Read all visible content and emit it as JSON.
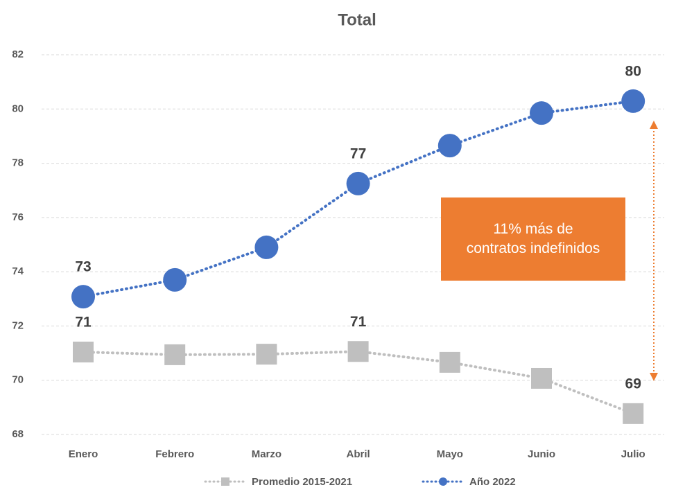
{
  "chart_data": {
    "type": "line",
    "title": "Total",
    "categories": [
      "Enero",
      "Febrero",
      "Marzo",
      "Abril",
      "Mayo",
      "Junio",
      "Julio"
    ],
    "series": [
      {
        "name": "Promedio 2015-2021",
        "color": "#BFBFBF",
        "marker": "square",
        "values": [
          71.04,
          70.94,
          70.96,
          71.06,
          70.66,
          70.07,
          68.77
        ],
        "value_labels": [
          "71",
          null,
          null,
          "71",
          null,
          null,
          "69"
        ]
      },
      {
        "name": "Año 2022",
        "color": "#4472C4",
        "marker": "circle",
        "values": [
          73.08,
          73.7,
          74.9,
          77.25,
          78.65,
          79.85,
          80.29
        ],
        "value_labels": [
          "73",
          null,
          null,
          "77",
          null,
          null,
          "80"
        ]
      }
    ],
    "ylim": [
      68,
      82
    ],
    "yticks": [
      68,
      70,
      72,
      74,
      76,
      78,
      80,
      82
    ],
    "grid": true,
    "legend": "bottom",
    "annotation": "11% más de contratos indefinidos",
    "annotation_color": "#ED7D31"
  }
}
